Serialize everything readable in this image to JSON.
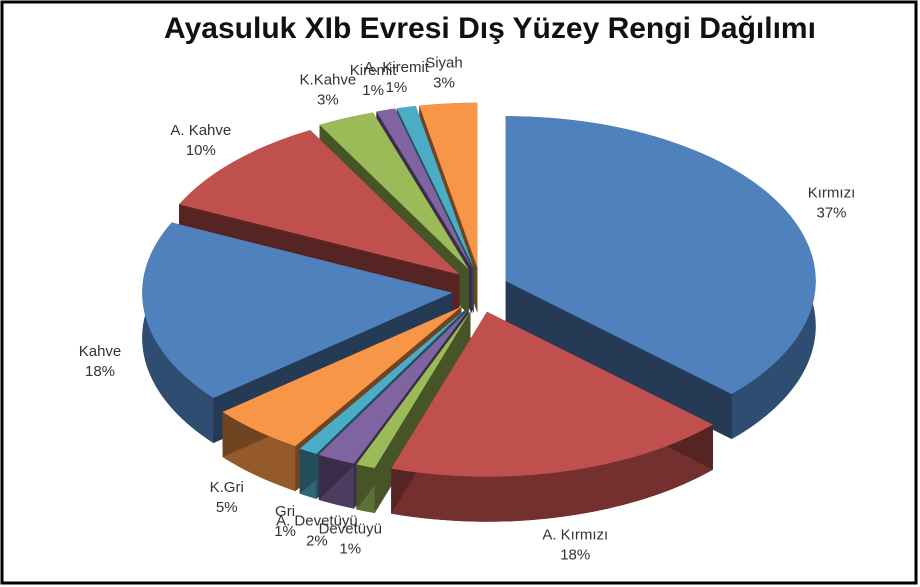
{
  "chart_data": {
    "type": "pie",
    "title": "Ayasuluk XIb Evresi Dış Yüzey Rengi Dağılımı",
    "categories": [
      "Kırmızı",
      "A. Kırmızı",
      "Devetüyü",
      "A. Devetüyü",
      "Gri",
      "K.Gri",
      "Kahve",
      "A. Kahve",
      "K.Kahve",
      "Kiremit",
      "A. Kiremit",
      "Siyah"
    ],
    "values": [
      37,
      18,
      1,
      2,
      1,
      5,
      18,
      10,
      3,
      1,
      1,
      3
    ],
    "value_labels": [
      "37%",
      "18%",
      "1%",
      "2%",
      "1%",
      "5%",
      "18%",
      "10%",
      "3%",
      "1%",
      "1%",
      "3%"
    ],
    "colors": [
      "#4f81bd",
      "#c0504d",
      "#9bbb59",
      "#8064a2",
      "#4bacc6",
      "#f79646",
      "#4f81bd",
      "#c0504d",
      "#9bbb59",
      "#8064a2",
      "#4bacc6",
      "#f79646"
    ]
  }
}
